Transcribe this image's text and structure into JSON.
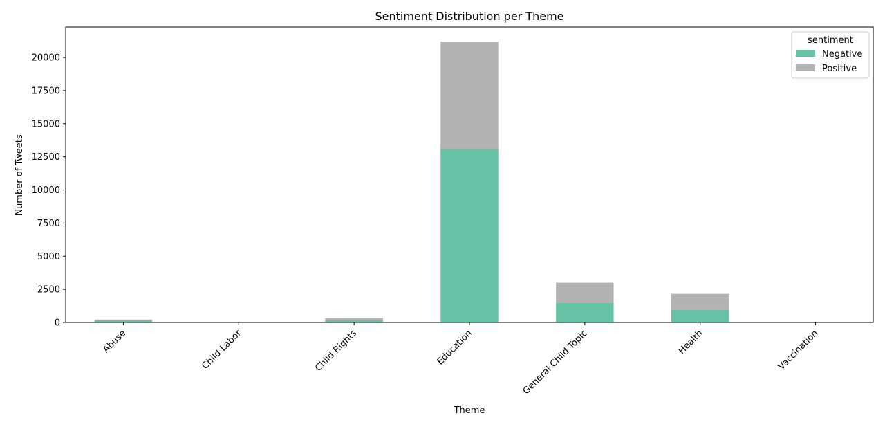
{
  "chart_data": {
    "type": "bar",
    "stacked": true,
    "title": "Sentiment Distribution per Theme",
    "xlabel": "Theme",
    "ylabel": "Number of Tweets",
    "categories": [
      "Abuse",
      "Child Labor",
      "Child Rights",
      "Education",
      "General Child Topic",
      "Health",
      "Vaccination"
    ],
    "series": [
      {
        "name": "Negative",
        "color": "#66c2a5",
        "values": [
          160,
          5,
          170,
          13100,
          1480,
          960,
          5
        ]
      },
      {
        "name": "Positive",
        "color": "#b3b3b3",
        "values": [
          60,
          3,
          160,
          8100,
          1520,
          1200,
          3
        ]
      }
    ],
    "yticks": [
      0,
      2500,
      5000,
      7500,
      10000,
      12500,
      15000,
      17500,
      20000
    ],
    "ylim": [
      0,
      22300
    ],
    "grid": false,
    "legend": {
      "title": "sentiment",
      "placement": "top-right"
    }
  }
}
